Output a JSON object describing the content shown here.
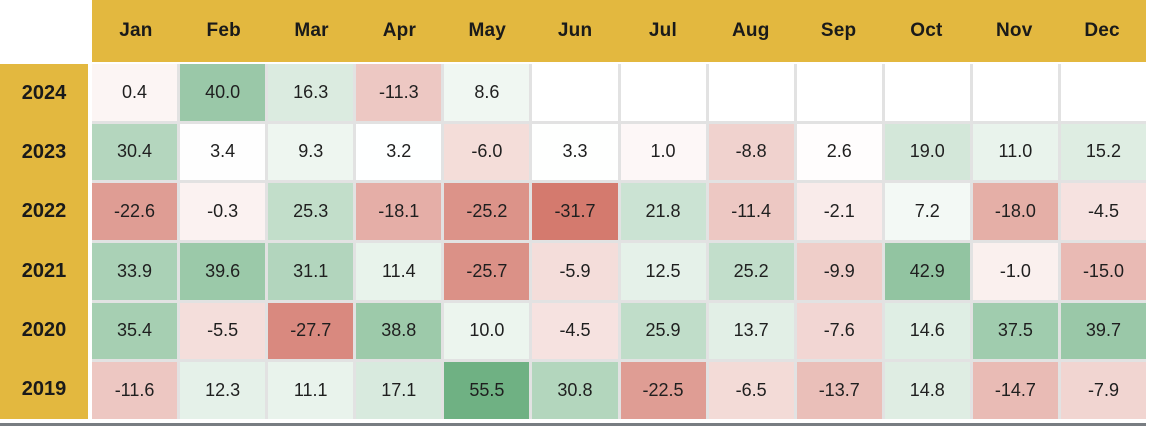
{
  "colors": {
    "background": "#FFFFFF",
    "header_gold": "#E3B83F",
    "header_text": "#1A1A1A",
    "cell_text": "#1F1F1F",
    "positive_max": "#6FB183",
    "negative_max": "#D47A6E",
    "empty_cell": "#FFFFFF",
    "grid_gap": "#E2E2E2",
    "bottom_bar": "#787D82"
  },
  "chart_data": {
    "type": "heatmap",
    "title": "",
    "x_labels": [
      "Jan",
      "Feb",
      "Mar",
      "Apr",
      "May",
      "Jun",
      "Jul",
      "Aug",
      "Sep",
      "Oct",
      "Nov",
      "Dec"
    ],
    "y_labels": [
      "2024",
      "2023",
      "2022",
      "2021",
      "2020",
      "2019"
    ],
    "values": [
      [
        0.4,
        40.0,
        16.3,
        -11.3,
        8.6,
        null,
        null,
        null,
        null,
        null,
        null,
        null
      ],
      [
        30.4,
        3.4,
        9.3,
        3.2,
        -6.0,
        3.3,
        1.0,
        -8.8,
        2.6,
        19.0,
        11.0,
        15.2
      ],
      [
        -22.6,
        -0.3,
        25.3,
        -18.1,
        -25.2,
        -31.7,
        21.8,
        -11.4,
        -2.1,
        7.2,
        -18.0,
        -4.5
      ],
      [
        33.9,
        39.6,
        31.1,
        11.4,
        -25.7,
        -5.9,
        12.5,
        25.2,
        -9.9,
        42.9,
        -1.0,
        -15.0
      ],
      [
        35.4,
        -5.5,
        -27.7,
        38.8,
        10.0,
        -4.5,
        25.9,
        13.7,
        -7.6,
        14.6,
        37.5,
        39.7
      ],
      [
        -11.6,
        12.3,
        11.1,
        17.1,
        55.5,
        30.8,
        -22.5,
        -6.5,
        -13.7,
        14.8,
        -14.7,
        -7.9
      ]
    ],
    "value_decimals": 1,
    "color_scale": {
      "min": -31.7,
      "midpoint": 3.0,
      "max": 55.5
    },
    "legend": "none",
    "grid": "gap-lines"
  }
}
